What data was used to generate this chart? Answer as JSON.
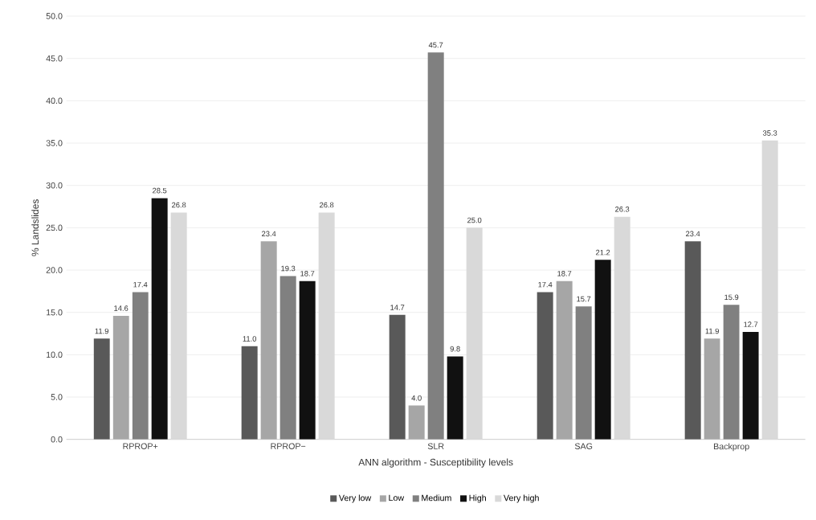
{
  "chart_data": {
    "type": "bar",
    "xlabel": "ANN algorithm - Susceptibility levels",
    "ylabel": "% Landslides",
    "categories": [
      "RPROP+",
      "RPROP−",
      "SLR",
      "SAG",
      "Backprop"
    ],
    "series": [
      {
        "name": "Very low",
        "color": "#595959",
        "values": [
          11.9,
          11.0,
          14.7,
          17.4,
          23.4
        ],
        "value_labels": [
          "11.9",
          "11.0",
          "14.7",
          "17.4",
          "23.4"
        ]
      },
      {
        "name": "Low",
        "color": "#a6a6a6",
        "values": [
          14.6,
          23.4,
          4.0,
          18.7,
          11.9
        ],
        "value_labels": [
          "14.6",
          "23.4",
          "4.0",
          "18.7",
          "11.9"
        ]
      },
      {
        "name": "Medium",
        "color": "#808080",
        "values": [
          17.4,
          19.3,
          45.7,
          15.7,
          15.9
        ],
        "value_labels": [
          "17.4",
          "19.3",
          "45.7",
          "15.7",
          "15.9"
        ]
      },
      {
        "name": "High",
        "color": "#111111",
        "values": [
          28.5,
          18.7,
          9.8,
          21.2,
          12.7
        ],
        "value_labels": [
          "28.5",
          "18.7",
          "9.8",
          "21.2",
          "12.7"
        ]
      },
      {
        "name": "Very high",
        "color": "#d9d9d9",
        "values": [
          26.8,
          26.8,
          25.0,
          26.3,
          35.3
        ],
        "value_labels": [
          "26.8",
          "26.8",
          "25.0",
          "26.3",
          "35.3"
        ]
      }
    ],
    "ylim": [
      0,
      50
    ],
    "yticks": [
      {
        "value": 0,
        "label": "0.0"
      },
      {
        "value": 5,
        "label": "5.0"
      },
      {
        "value": 10,
        "label": "10.0"
      },
      {
        "value": 15,
        "label": "15.0"
      },
      {
        "value": 20,
        "label": "20.0"
      },
      {
        "value": 25,
        "label": "25.0"
      },
      {
        "value": 30,
        "label": "30.0"
      },
      {
        "value": 35,
        "label": "35.0"
      },
      {
        "value": 40,
        "label": "40.0"
      },
      {
        "value": 45,
        "label": "45.0"
      },
      {
        "value": 50,
        "label": "50.0"
      }
    ],
    "grid": "y",
    "legend": "bottom"
  }
}
